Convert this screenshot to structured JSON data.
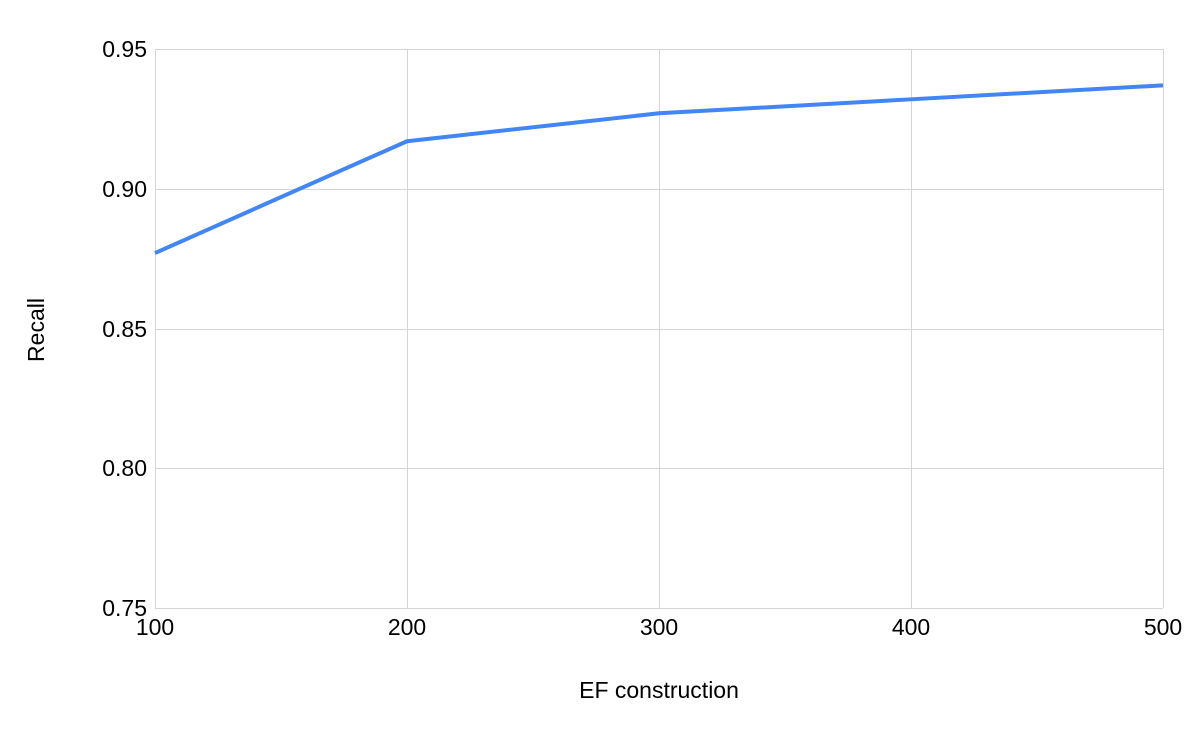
{
  "chart_data": {
    "type": "line",
    "title": "",
    "xlabel": "EF construction",
    "ylabel": "Recall",
    "x": [
      100,
      200,
      300,
      400,
      500
    ],
    "series": [
      {
        "name": "Recall",
        "values": [
          0.877,
          0.917,
          0.927,
          0.932,
          0.937
        ]
      }
    ],
    "xlim": [
      100,
      500
    ],
    "ylim": [
      0.75,
      0.95
    ],
    "xticks": [
      100,
      200,
      300,
      400,
      500
    ],
    "xtick_labels": [
      "100",
      "200",
      "300",
      "400",
      "500"
    ],
    "yticks": [
      0.75,
      0.8,
      0.85,
      0.9,
      0.95
    ],
    "ytick_labels": [
      "0.75",
      "0.80",
      "0.85",
      "0.90",
      "0.95"
    ],
    "grid": true,
    "legend": "none",
    "colors": {
      "line": "#4285f4",
      "grid": "#d5d5d5",
      "text": "#000000",
      "background": "#ffffff"
    }
  }
}
